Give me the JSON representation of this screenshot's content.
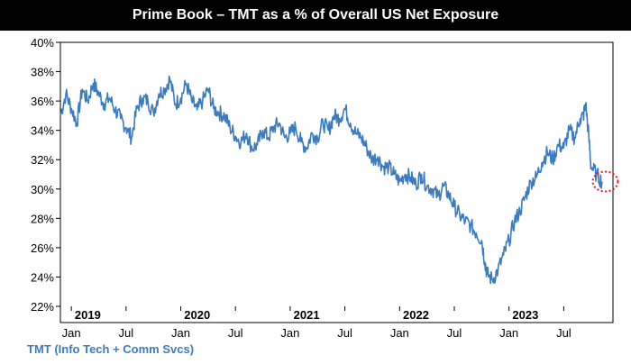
{
  "colors": {
    "line": "#3b7bbf",
    "title_bg": "#000000",
    "highlight": "#e02020"
  },
  "chart_data": {
    "type": "line",
    "title": "Prime Book – TMT as a % of Overall US Net Exposure",
    "ylim": [
      22,
      40
    ],
    "yticks": [
      "22%",
      "24%",
      "26%",
      "28%",
      "30%",
      "32%",
      "34%",
      "36%",
      "38%",
      "40%"
    ],
    "ytick_values": [
      22,
      24,
      26,
      28,
      30,
      32,
      34,
      36,
      38,
      40
    ],
    "xrange": [
      2018.9,
      2023.95
    ],
    "xticks": [
      {
        "label": "Jan",
        "t": 2019.0
      },
      {
        "label": "Jul",
        "t": 2019.5
      },
      {
        "label": "Jan",
        "t": 2020.0
      },
      {
        "label": "Jul",
        "t": 2020.5
      },
      {
        "label": "Jan",
        "t": 2021.0
      },
      {
        "label": "Jul",
        "t": 2021.5
      },
      {
        "label": "Jan",
        "t": 2022.0
      },
      {
        "label": "Jul",
        "t": 2022.5
      },
      {
        "label": "Jan",
        "t": 2023.0
      },
      {
        "label": "Jul",
        "t": 2023.5
      }
    ],
    "years": [
      {
        "label": "2019",
        "t": 2019.15
      },
      {
        "label": "2020",
        "t": 2020.15
      },
      {
        "label": "2021",
        "t": 2021.15
      },
      {
        "label": "2022",
        "t": 2022.15
      },
      {
        "label": "2023",
        "t": 2023.15
      }
    ],
    "series": [
      {
        "name": "TMT (Info Tech + Comm Svcs)",
        "x": [
          2018.9,
          2018.95,
          2019.0,
          2019.05,
          2019.1,
          2019.15,
          2019.2,
          2019.25,
          2019.3,
          2019.35,
          2019.4,
          2019.45,
          2019.5,
          2019.55,
          2019.6,
          2019.65,
          2019.7,
          2019.75,
          2019.8,
          2019.85,
          2019.9,
          2019.95,
          2020.0,
          2020.05,
          2020.1,
          2020.15,
          2020.2,
          2020.25,
          2020.3,
          2020.35,
          2020.4,
          2020.45,
          2020.5,
          2020.55,
          2020.6,
          2020.65,
          2020.7,
          2020.75,
          2020.8,
          2020.85,
          2020.9,
          2020.95,
          2021.0,
          2021.05,
          2021.1,
          2021.15,
          2021.2,
          2021.25,
          2021.3,
          2021.35,
          2021.4,
          2021.45,
          2021.5,
          2021.55,
          2021.6,
          2021.65,
          2021.7,
          2021.75,
          2021.8,
          2021.85,
          2021.9,
          2021.95,
          2022.0,
          2022.05,
          2022.1,
          2022.15,
          2022.2,
          2022.25,
          2022.3,
          2022.35,
          2022.4,
          2022.45,
          2022.5,
          2022.55,
          2022.6,
          2022.65,
          2022.7,
          2022.75,
          2022.78,
          2022.8,
          2022.85,
          2022.9,
          2022.95,
          2023.0,
          2023.05,
          2023.1,
          2023.15,
          2023.2,
          2023.25,
          2023.3,
          2023.35,
          2023.4,
          2023.45,
          2023.5,
          2023.55,
          2023.6,
          2023.65,
          2023.68,
          2023.7,
          2023.73,
          2023.75,
          2023.8,
          2023.85
        ],
        "y": [
          35.0,
          36.5,
          35.5,
          34.5,
          36.8,
          36.0,
          37.2,
          36.5,
          35.8,
          36.2,
          35.4,
          34.8,
          34.2,
          33.5,
          35.5,
          36.2,
          36.0,
          35.2,
          36.5,
          36.8,
          37.5,
          35.8,
          36.2,
          37.2,
          36.0,
          35.4,
          36.0,
          36.8,
          35.5,
          35.2,
          35.0,
          34.2,
          33.6,
          33.2,
          33.8,
          32.8,
          33.0,
          34.0,
          33.5,
          34.2,
          34.5,
          33.5,
          33.8,
          34.2,
          33.2,
          32.8,
          33.8,
          33.5,
          34.5,
          34.0,
          35.0,
          34.8,
          35.5,
          34.5,
          33.8,
          33.5,
          32.8,
          32.0,
          32.2,
          31.5,
          31.5,
          31.0,
          30.5,
          31.0,
          30.8,
          30.3,
          31.0,
          30.2,
          30.0,
          29.5,
          30.2,
          29.6,
          28.8,
          28.2,
          27.8,
          27.5,
          27.0,
          26.5,
          25.0,
          24.2,
          23.8,
          24.5,
          25.5,
          26.5,
          27.8,
          28.5,
          29.5,
          30.5,
          30.8,
          31.8,
          32.5,
          32.0,
          33.0,
          32.8,
          34.0,
          33.5,
          34.8,
          35.0,
          35.8,
          33.5,
          31.5,
          31.0,
          30.5
        ]
      }
    ],
    "legend": "TMT (Info Tech + Comm Svcs)",
    "highlight": {
      "t": 2023.88,
      "v": 30.2
    }
  }
}
